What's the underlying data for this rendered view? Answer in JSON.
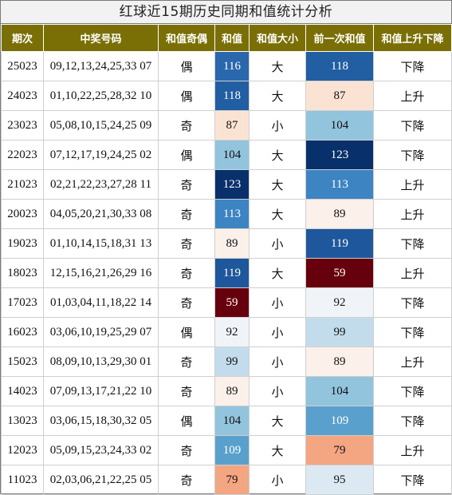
{
  "title": "红球近15期历史同期和值统计分析",
  "colors": {
    "header_bg": "#7a6f05",
    "scale": {
      "59": "#67000d",
      "79": "#f4a582",
      "87": "#fbe3d4",
      "89": "#fbf0ea",
      "92": "#f0f4f8",
      "95": "#dce9f3",
      "99": "#c3dcec",
      "104": "#92c4de",
      "109": "#5aa0cd",
      "113": "#3d84c2",
      "116": "#2a67ac",
      "118": "#215ea2",
      "119": "#1e579c",
      "123": "#08306b"
    }
  },
  "headers": [
    "期次",
    "中奖号码",
    "和值奇偶",
    "和值",
    "和值大小",
    "前一次和值",
    "和值上升下降"
  ],
  "rows": [
    {
      "issue": "25023",
      "numbers": "09,12,13,24,25,33 07",
      "parity": "偶",
      "sum": 116,
      "size": "大",
      "prev": 118,
      "trend": "下降"
    },
    {
      "issue": "24023",
      "numbers": "01,10,22,25,28,32 10",
      "parity": "偶",
      "sum": 118,
      "size": "大",
      "prev": 87,
      "trend": "上升"
    },
    {
      "issue": "23023",
      "numbers": "05,08,10,15,24,25 09",
      "parity": "奇",
      "sum": 87,
      "size": "小",
      "prev": 104,
      "trend": "下降"
    },
    {
      "issue": "22023",
      "numbers": "07,12,17,19,24,25 02",
      "parity": "偶",
      "sum": 104,
      "size": "大",
      "prev": 123,
      "trend": "下降"
    },
    {
      "issue": "21023",
      "numbers": "02,21,22,23,27,28 11",
      "parity": "奇",
      "sum": 123,
      "size": "大",
      "prev": 113,
      "trend": "上升"
    },
    {
      "issue": "20023",
      "numbers": "04,05,20,21,30,33 08",
      "parity": "奇",
      "sum": 113,
      "size": "大",
      "prev": 89,
      "trend": "上升"
    },
    {
      "issue": "19023",
      "numbers": "01,10,14,15,18,31 13",
      "parity": "奇",
      "sum": 89,
      "size": "小",
      "prev": 119,
      "trend": "下降"
    },
    {
      "issue": "18023",
      "numbers": "12,15,16,21,26,29 16",
      "parity": "奇",
      "sum": 119,
      "size": "大",
      "prev": 59,
      "trend": "上升"
    },
    {
      "issue": "17023",
      "numbers": "01,03,04,11,18,22 14",
      "parity": "奇",
      "sum": 59,
      "size": "小",
      "prev": 92,
      "trend": "下降"
    },
    {
      "issue": "16023",
      "numbers": "03,06,10,19,25,29 07",
      "parity": "偶",
      "sum": 92,
      "size": "小",
      "prev": 99,
      "trend": "下降"
    },
    {
      "issue": "15023",
      "numbers": "08,09,10,13,29,30 01",
      "parity": "奇",
      "sum": 99,
      "size": "小",
      "prev": 89,
      "trend": "上升"
    },
    {
      "issue": "14023",
      "numbers": "07,09,13,17,21,22 10",
      "parity": "奇",
      "sum": 89,
      "size": "小",
      "prev": 104,
      "trend": "下降"
    },
    {
      "issue": "13023",
      "numbers": "03,06,15,18,30,32 05",
      "parity": "偶",
      "sum": 104,
      "size": "大",
      "prev": 109,
      "trend": "下降"
    },
    {
      "issue": "12023",
      "numbers": "05,09,15,23,24,33 02",
      "parity": "奇",
      "sum": 109,
      "size": "大",
      "prev": 79,
      "trend": "上升"
    },
    {
      "issue": "11023",
      "numbers": "02,03,06,21,22,25 05",
      "parity": "奇",
      "sum": 79,
      "size": "小",
      "prev": 95,
      "trend": "下降"
    }
  ]
}
